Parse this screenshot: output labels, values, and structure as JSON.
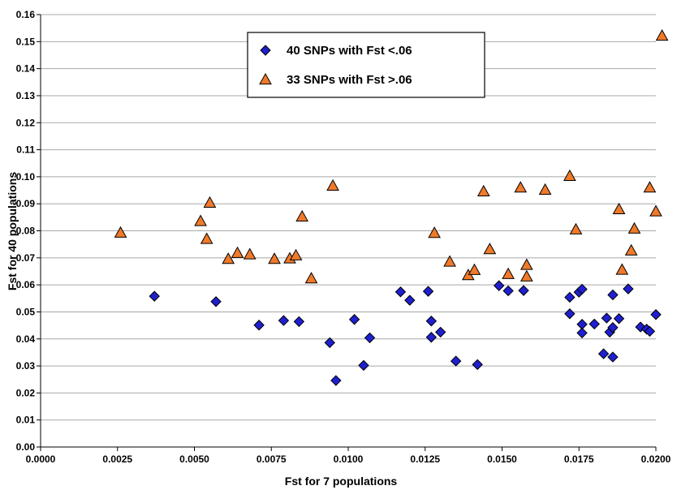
{
  "chart_data": {
    "type": "scatter",
    "title": "",
    "xlabel": "Fst for 7 populations",
    "ylabel": "Fst for 40 populations",
    "xlim": [
      0.0,
      0.02
    ],
    "ylim": [
      0.0,
      0.16
    ],
    "x_ticks": [
      "0.0000",
      "0.0025",
      "0.0050",
      "0.0075",
      "0.0100",
      "0.0125",
      "0.0150",
      "0.0175",
      "0.0200"
    ],
    "y_ticks": [
      "0.00",
      "0.01",
      "0.02",
      "0.03",
      "0.04",
      "0.05",
      "0.06",
      "0.07",
      "0.08",
      "0.09",
      "0.10",
      "0.11",
      "0.12",
      "0.13",
      "0.14",
      "0.15",
      "0.16"
    ],
    "grid": "horizontal",
    "legend_position": "top-center",
    "series": [
      {
        "name": "40 SNPs with Fst <.06",
        "marker": "diamond",
        "color": "#1f1fd0",
        "points": [
          [
            0.0037,
            0.0558
          ],
          [
            0.0057,
            0.0538
          ],
          [
            0.0071,
            0.0451
          ],
          [
            0.0079,
            0.0468
          ],
          [
            0.0084,
            0.0464
          ],
          [
            0.0094,
            0.0386
          ],
          [
            0.0096,
            0.0246
          ],
          [
            0.0102,
            0.0472
          ],
          [
            0.0105,
            0.0302
          ],
          [
            0.0107,
            0.0404
          ],
          [
            0.0117,
            0.0574
          ],
          [
            0.012,
            0.0543
          ],
          [
            0.0126,
            0.0576
          ],
          [
            0.0127,
            0.0466
          ],
          [
            0.0127,
            0.0406
          ],
          [
            0.013,
            0.0425
          ],
          [
            0.0135,
            0.0318
          ],
          [
            0.0142,
            0.0305
          ],
          [
            0.0149,
            0.0597
          ],
          [
            0.0152,
            0.0578
          ],
          [
            0.0157,
            0.0579
          ],
          [
            0.0172,
            0.0554
          ],
          [
            0.0172,
            0.0493
          ],
          [
            0.0175,
            0.0573
          ],
          [
            0.0176,
            0.0584
          ],
          [
            0.0176,
            0.0454
          ],
          [
            0.0176,
            0.0422
          ],
          [
            0.018,
            0.0455
          ],
          [
            0.0183,
            0.0345
          ],
          [
            0.0184,
            0.0477
          ],
          [
            0.0185,
            0.0425
          ],
          [
            0.0186,
            0.0333
          ],
          [
            0.0186,
            0.0442
          ],
          [
            0.0186,
            0.0563
          ],
          [
            0.0188,
            0.0475
          ],
          [
            0.0191,
            0.0585
          ],
          [
            0.0195,
            0.0444
          ],
          [
            0.0197,
            0.0436
          ],
          [
            0.0198,
            0.0428
          ],
          [
            0.02,
            0.049
          ]
        ]
      },
      {
        "name": "33 SNPs with Fst >.06",
        "marker": "triangle",
        "color": "#f07a2a",
        "points": [
          [
            0.0026,
            0.0793
          ],
          [
            0.0052,
            0.0836
          ],
          [
            0.0054,
            0.077
          ],
          [
            0.0055,
            0.0904
          ],
          [
            0.0061,
            0.0696
          ],
          [
            0.0064,
            0.0718
          ],
          [
            0.0068,
            0.0713
          ],
          [
            0.0076,
            0.0696
          ],
          [
            0.0081,
            0.0698
          ],
          [
            0.0083,
            0.0709
          ],
          [
            0.0085,
            0.0853
          ],
          [
            0.0088,
            0.0624
          ],
          [
            0.0095,
            0.0967
          ],
          [
            0.0128,
            0.0792
          ],
          [
            0.0133,
            0.0686
          ],
          [
            0.0139,
            0.0636
          ],
          [
            0.0141,
            0.0655
          ],
          [
            0.0144,
            0.0946
          ],
          [
            0.0146,
            0.0732
          ],
          [
            0.0152,
            0.064
          ],
          [
            0.0156,
            0.096
          ],
          [
            0.0158,
            0.0674
          ],
          [
            0.0158,
            0.0631
          ],
          [
            0.0164,
            0.0952
          ],
          [
            0.0172,
            0.1003
          ],
          [
            0.0174,
            0.0805
          ],
          [
            0.0188,
            0.088
          ],
          [
            0.0189,
            0.0656
          ],
          [
            0.0192,
            0.0727
          ],
          [
            0.0193,
            0.0808
          ],
          [
            0.0198,
            0.096
          ],
          [
            0.02,
            0.0872
          ],
          [
            0.0202,
            0.1522
          ]
        ]
      }
    ]
  }
}
